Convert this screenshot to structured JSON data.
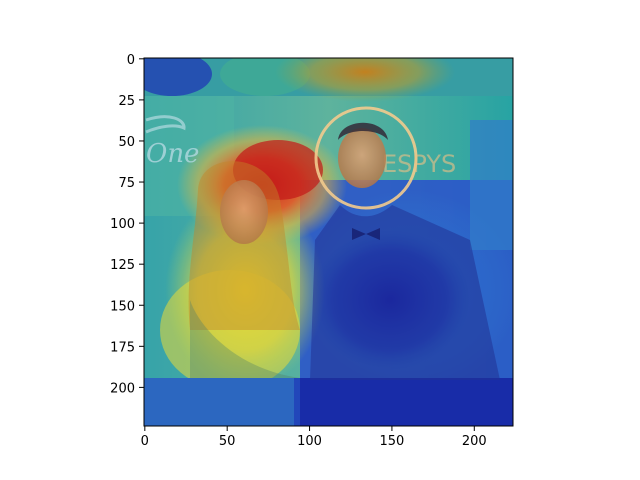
{
  "chart_data": {
    "type": "heatmap",
    "title": "",
    "xlabel": "",
    "ylabel": "",
    "xlim": [
      0,
      224
    ],
    "ylim": [
      224,
      0
    ],
    "x_ticks": [
      0,
      50,
      100,
      150,
      200
    ],
    "y_ticks": [
      0,
      25,
      50,
      75,
      100,
      125,
      150,
      175,
      200
    ],
    "x_tick_labels": [
      "0",
      "50",
      "100",
      "150",
      "200"
    ],
    "y_tick_labels": [
      "0",
      "25",
      "50",
      "75",
      "100",
      "125",
      "150",
      "175",
      "200"
    ],
    "grid": false,
    "colormap": "jet",
    "background_photo": {
      "visible_text": [
        "One",
        "ESPYS"
      ]
    }
  }
}
